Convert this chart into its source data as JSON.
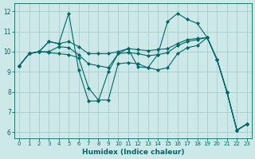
{
  "xlabel": "Humidex (Indice chaleur)",
  "background_color": "#cce8e8",
  "grid_color": "#aacccc",
  "line_color": "#006666",
  "xlim": [
    -0.5,
    23.5
  ],
  "ylim": [
    5.7,
    12.4
  ],
  "xticks": [
    0,
    1,
    2,
    3,
    4,
    5,
    6,
    7,
    8,
    9,
    10,
    11,
    12,
    13,
    14,
    15,
    16,
    17,
    18,
    19,
    20,
    21,
    22,
    23
  ],
  "yticks": [
    6,
    7,
    8,
    9,
    10,
    11,
    12
  ],
  "lines": [
    {
      "x": [
        0,
        1,
        2,
        3,
        4,
        5,
        6,
        7,
        8,
        9,
        10,
        11,
        12,
        13,
        14,
        15,
        16,
        17,
        18,
        19,
        20,
        21,
        22,
        23
      ],
      "y": [
        9.3,
        9.9,
        10.0,
        10.5,
        10.4,
        11.9,
        9.1,
        7.55,
        7.55,
        9.0,
        9.9,
        10.15,
        9.25,
        9.2,
        9.85,
        11.5,
        11.9,
        11.6,
        11.4,
        10.7,
        9.6,
        8.0,
        6.1,
        6.4
      ]
    },
    {
      "x": [
        0,
        1,
        2,
        3,
        4,
        5,
        6,
        7,
        8,
        9,
        10,
        11,
        12,
        13,
        14,
        15,
        16,
        17,
        18,
        19,
        20,
        21,
        22,
        23
      ],
      "y": [
        9.3,
        9.9,
        10.0,
        10.5,
        10.4,
        10.5,
        10.25,
        9.9,
        9.9,
        9.9,
        10.0,
        10.15,
        10.1,
        10.05,
        10.1,
        10.15,
        10.4,
        10.6,
        10.65,
        10.7,
        9.6,
        8.0,
        6.1,
        6.4
      ]
    },
    {
      "x": [
        0,
        1,
        2,
        3,
        4,
        5,
        6,
        7,
        8,
        9,
        10,
        11,
        12,
        13,
        14,
        15,
        16,
        17,
        18,
        19,
        20,
        21,
        22,
        23
      ],
      "y": [
        9.3,
        9.9,
        10.0,
        10.0,
        10.25,
        10.2,
        9.85,
        9.4,
        9.3,
        9.2,
        9.9,
        9.95,
        9.9,
        9.8,
        9.85,
        9.95,
        10.3,
        10.5,
        10.6,
        10.7,
        9.6,
        8.0,
        6.1,
        6.4
      ]
    },
    {
      "x": [
        0,
        1,
        2,
        3,
        4,
        5,
        6,
        7,
        8,
        9,
        10,
        11,
        12,
        13,
        14,
        15,
        16,
        17,
        18,
        19,
        20,
        21,
        22,
        23
      ],
      "y": [
        9.3,
        9.9,
        10.0,
        9.95,
        9.9,
        9.85,
        9.7,
        8.2,
        7.6,
        7.6,
        9.4,
        9.45,
        9.4,
        9.2,
        9.1,
        9.2,
        9.9,
        10.2,
        10.3,
        10.7,
        9.6,
        8.0,
        6.1,
        6.4
      ]
    }
  ]
}
